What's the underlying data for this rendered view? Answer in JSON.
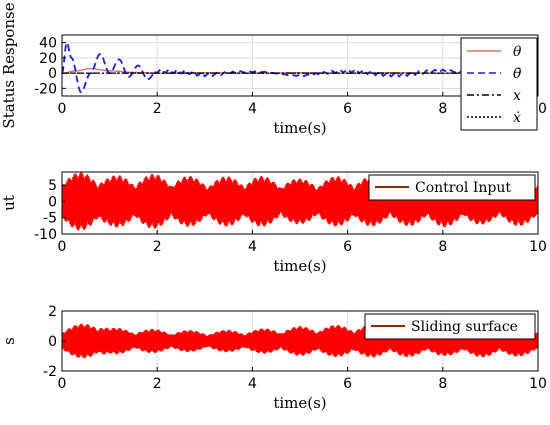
{
  "chart_data": [
    {
      "type": "line",
      "ylabel": "Status Response",
      "xlabel": "time(s)",
      "xlim": [
        0,
        10
      ],
      "ylim": [
        -30,
        50
      ],
      "xticks": [
        0,
        2,
        4,
        6,
        8,
        10
      ],
      "yticks": [
        -20,
        0,
        20,
        40
      ],
      "grid": true,
      "legend_position": "right",
      "series": [
        {
          "name": "θ",
          "color": "#e06666",
          "style": "solid",
          "x": [
            0,
            0.3,
            0.6,
            1.0,
            1.5,
            2,
            3,
            4,
            5,
            6,
            7,
            8,
            9,
            10
          ],
          "y": [
            0,
            3,
            6,
            3,
            1,
            0,
            0.5,
            0,
            0.5,
            0,
            0.5,
            0,
            0.5,
            0
          ]
        },
        {
          "name": "θ̇",
          "color": "#1f1fd6",
          "style": "dashed",
          "x": [
            0,
            0.1,
            0.2,
            0.4,
            0.6,
            0.8,
            1.0,
            1.2,
            1.4,
            1.6,
            1.8,
            2.0,
            2.5,
            3,
            4,
            5,
            6,
            7,
            8,
            9,
            10
          ],
          "y": [
            0,
            40,
            20,
            -25,
            0,
            25,
            0,
            18,
            -5,
            10,
            -8,
            3,
            2,
            -2,
            2,
            -3,
            3,
            -2,
            3,
            -3,
            2
          ]
        },
        {
          "name": "x",
          "color": "#000000",
          "style": "dashdot",
          "x": [
            0,
            2,
            4,
            6,
            8,
            10
          ],
          "y": [
            0,
            0,
            0,
            0,
            0,
            0
          ]
        },
        {
          "name": "ẋ",
          "color": "#000000",
          "style": "dotted",
          "x": [
            0,
            2,
            4,
            6,
            8,
            10
          ],
          "y": [
            0,
            0,
            0,
            0,
            0,
            0
          ]
        }
      ]
    },
    {
      "type": "line",
      "ylabel": "ut",
      "xlabel": "time(s)",
      "xlim": [
        0,
        10
      ],
      "ylim": [
        -10,
        9
      ],
      "xticks": [
        0,
        2,
        4,
        6,
        8,
        10
      ],
      "yticks": [
        -10,
        -5,
        0,
        5
      ],
      "grid": true,
      "legend_position": "top-right",
      "series": [
        {
          "name": "Control Input",
          "color": "#ff0000",
          "style": "solid",
          "envelope_t": [
            0,
            0.5,
            0.8,
            1,
            2,
            3,
            4,
            5,
            6,
            7,
            8,
            9,
            10
          ],
          "envelope_amp": [
            9,
            9,
            9,
            8,
            8.5,
            7.5,
            8,
            7,
            8,
            7.5,
            8,
            7,
            8
          ]
        }
      ]
    },
    {
      "type": "line",
      "ylabel": "s",
      "xlabel": "time(s)",
      "xlim": [
        0,
        10
      ],
      "ylim": [
        -2,
        2
      ],
      "xticks": [
        0,
        2,
        4,
        6,
        8,
        10
      ],
      "yticks": [
        -2,
        0,
        2
      ],
      "grid": true,
      "legend_position": "top-right",
      "series": [
        {
          "name": "Sliding surface",
          "color": "#ff0000",
          "style": "solid",
          "envelope_t": [
            0,
            0.5,
            0.8,
            1,
            2,
            3,
            4,
            5,
            6,
            7,
            8,
            9,
            10
          ],
          "envelope_amp": [
            1.0,
            1.2,
            1.4,
            0.9,
            0.8,
            0.7,
            0.8,
            1.0,
            1.1,
            1.1,
            1.0,
            1.1,
            1.0
          ]
        }
      ]
    }
  ]
}
